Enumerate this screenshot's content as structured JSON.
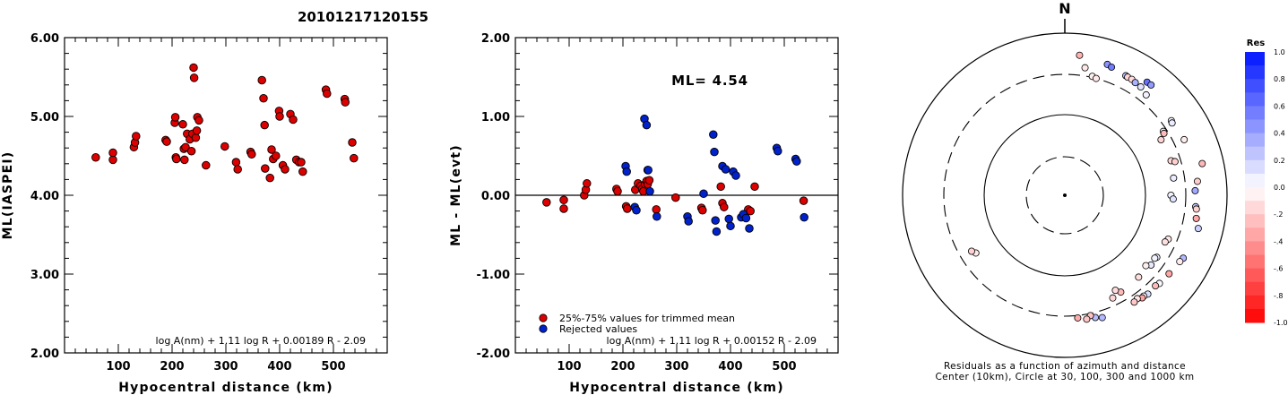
{
  "title": "20101217120155",
  "chart_data": [
    {
      "type": "scatter",
      "xlabel": "Hypocentral distance (km)",
      "ylabel": "ML(IASPEI)",
      "xlim": [
        0,
        600
      ],
      "ylim": [
        2.0,
        6.0
      ],
      "xticks": [
        "100",
        "200",
        "300",
        "400",
        "500"
      ],
      "yticks": [
        "2.00",
        "3.00",
        "4.00",
        "5.00",
        "6.00"
      ],
      "formula": "log A(nm) + 1.11 log R + 0.00189 R - 2.09",
      "series": [
        {
          "color": "#dd0000",
          "x": [
            58,
            90,
            90,
            129,
            131,
            133,
            188,
            190,
            205,
            206,
            207,
            208,
            220,
            222,
            223,
            225,
            228,
            233,
            236,
            238,
            240,
            241,
            244,
            246,
            247,
            250,
            263,
            298,
            319,
            322,
            346,
            348,
            367,
            370,
            372,
            373,
            382,
            385,
            388,
            393,
            399,
            400,
            406,
            410,
            420,
            425,
            431,
            436,
            440,
            443,
            486,
            488,
            521,
            522,
            535,
            538
          ],
          "y": [
            4.48,
            4.45,
            4.54,
            4.61,
            4.67,
            4.75,
            4.7,
            4.68,
            4.92,
            4.99,
            4.48,
            4.46,
            4.9,
            4.59,
            4.45,
            4.61,
            4.78,
            4.71,
            4.56,
            4.78,
            5.62,
            5.49,
            4.73,
            4.82,
            4.99,
            4.95,
            4.38,
            4.62,
            4.42,
            4.33,
            4.55,
            4.52,
            5.46,
            5.23,
            4.89,
            4.34,
            4.22,
            4.58,
            4.46,
            4.5,
            5.07,
            5.0,
            4.38,
            4.33,
            5.03,
            4.96,
            4.45,
            4.42,
            4.42,
            4.3,
            5.34,
            5.29,
            5.22,
            5.18,
            4.67,
            4.47
          ]
        }
      ]
    },
    {
      "type": "scatter",
      "xlabel": "Hypocentral distance (km)",
      "ylabel": "ML - ML(evt)",
      "xlim": [
        0,
        600
      ],
      "ylim": [
        -2.0,
        2.0
      ],
      "xticks": [
        "100",
        "200",
        "300",
        "400",
        "500"
      ],
      "yticks": [
        "-2.00",
        "-1.00",
        "0.00",
        "1.00",
        "2.00"
      ],
      "ml_label": "ML= 4.54",
      "formula": "log A(nm) + 1.11 log R + 0.00152 R - 2.09",
      "legend": [
        "25%-75% values for trimmed mean",
        "Rejected values"
      ],
      "series": [
        {
          "color": "#dd0000",
          "x": [
            58,
            90,
            90,
            128,
            131,
            133,
            188,
            190,
            206,
            208,
            223,
            228,
            233,
            236,
            238,
            241,
            244,
            246,
            249,
            262,
            298,
            346,
            348,
            382,
            385,
            388,
            433,
            437,
            445,
            536
          ],
          "y": [
            -0.09,
            -0.06,
            -0.17,
            0.0,
            0.07,
            0.15,
            0.08,
            0.05,
            -0.14,
            -0.17,
            0.07,
            0.15,
            0.12,
            0.08,
            0.05,
            0.14,
            0.18,
            0.14,
            0.19,
            -0.18,
            -0.03,
            -0.16,
            -0.19,
            0.11,
            -0.1,
            -0.15,
            -0.18,
            -0.2,
            0.11,
            -0.07
          ]
        },
        {
          "color": "#0022cc",
          "x": [
            205,
            207,
            222,
            225,
            240,
            244,
            246,
            247,
            250,
            263,
            320,
            322,
            350,
            368,
            370,
            372,
            374,
            385,
            391,
            397,
            400,
            405,
            410,
            420,
            424,
            429,
            435,
            486,
            488,
            521,
            523,
            537
          ],
          "y": [
            0.37,
            0.3,
            -0.15,
            -0.19,
            0.97,
            0.89,
            0.32,
            0.32,
            0.05,
            -0.27,
            -0.27,
            -0.33,
            0.02,
            0.77,
            0.55,
            -0.32,
            -0.46,
            0.37,
            0.33,
            -0.3,
            -0.39,
            0.3,
            0.25,
            -0.28,
            -0.24,
            -0.29,
            -0.42,
            0.6,
            0.56,
            0.46,
            0.43,
            -0.28
          ]
        }
      ]
    },
    {
      "type": "polar-scatter",
      "north_label": "N",
      "caption": "Residuals as a function of azimuth and distance",
      "caption2": "Center (10km), Circle at 30, 100, 300 and 1000 km",
      "colorbar_title": "Res",
      "colorbar_ticks": [
        "1.0",
        "0.8",
        "0.6",
        "0.4",
        "0.2",
        "0.0",
        "-.2",
        "-.4",
        "-.6",
        "-.8",
        "-1.0"
      ],
      "azimuth_deg": [
        6,
        9,
        13,
        15,
        18,
        20,
        27,
        28,
        30,
        32,
        35,
        36,
        38,
        39,
        55,
        56,
        57,
        58,
        60,
        65,
        72,
        73,
        77,
        81,
        84,
        88,
        90,
        92,
        95,
        96,
        100,
        104,
        113,
        115,
        118,
        120,
        124,
        125,
        127,
        129,
        131,
        133,
        135,
        138,
        140,
        142,
        143,
        145,
        147,
        150,
        152,
        155,
        163,
        166,
        168,
        170,
        174,
        237,
        239
      ],
      "distance_km": [
        536,
        381,
        310,
        300,
        488,
        471,
        442,
        437,
        438,
        425,
        418,
        521,
        523,
        382,
        391,
        383,
        272,
        268,
        229,
        410,
        233,
        256,
        538,
        223,
        430,
        395,
        200,
        213,
        406,
        417,
        432,
        486,
        237,
        226,
        440,
        423,
        228,
        221,
        396,
        228,
        207,
        383,
        370,
        224,
        380,
        369,
        374,
        350,
        362,
        234,
        209,
        244,
        368,
        348,
        319,
        346,
        322,
        200,
        215
      ],
      "residual": [
        -0.3,
        -0.09,
        -0.06,
        -0.09,
        0.46,
        0.56,
        0.3,
        -0.17,
        -0.14,
        0.33,
        0.12,
        0.6,
        0.43,
        0.05,
        0.02,
        0.08,
        0.05,
        -0.27,
        -0.17,
        -0.07,
        -0.16,
        -0.19,
        -0.28,
        0.08,
        -0.2,
        0.37,
        0.05,
        0.12,
        0.25,
        -0.18,
        -0.35,
        0.2,
        -0.1,
        -0.12,
        0.3,
        -0.07,
        0.07,
        0.05,
        -0.35,
        0.1,
        -0.06,
        0.02,
        -0.27,
        -0.13,
        0.14,
        -0.02,
        -0.36,
        -0.1,
        -0.22,
        -0.28,
        -0.14,
        -0.16,
        0.3,
        0.28,
        -0.24,
        -0.23,
        -0.33,
        -0.07,
        -0.18
      ]
    }
  ]
}
